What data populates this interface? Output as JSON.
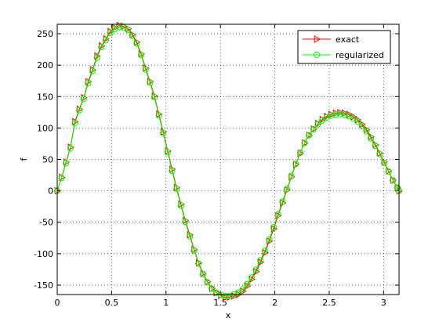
{
  "chart_data": {
    "type": "line",
    "title": "",
    "xlabel": "x",
    "ylabel": "f",
    "xlim": [
      0,
      3.1416
    ],
    "ylim": [
      -165,
      265
    ],
    "xticks": [
      0,
      0.5,
      1,
      1.5,
      2,
      2.5,
      3
    ],
    "xtick_labels": [
      "0",
      "0.5",
      "1",
      "1.5",
      "2",
      "2.5",
      "3"
    ],
    "yticks": [
      -150,
      -100,
      -50,
      0,
      50,
      100,
      150,
      200,
      250
    ],
    "ytick_labels": [
      "-150",
      "-100",
      "-50",
      "0",
      "50",
      "100",
      "150",
      "200",
      "250"
    ],
    "grid": true,
    "grid_style": "dotted",
    "legend_position": "top-right",
    "series": [
      {
        "name": "exact",
        "color": "#ff0000",
        "marker": "triangle-right",
        "x": [
          0.0,
          0.0406,
          0.0812,
          0.1218,
          0.1624,
          0.203,
          0.2436,
          0.2842,
          0.3248,
          0.3654,
          0.406,
          0.4466,
          0.4872,
          0.5278,
          0.5684,
          0.609,
          0.6496,
          0.6902,
          0.7308,
          0.7714,
          0.812,
          0.8526,
          0.8932,
          0.9338,
          0.9744,
          1.015,
          1.0556,
          1.0962,
          1.1368,
          1.1774,
          1.218,
          1.2586,
          1.2992,
          1.3398,
          1.3804,
          1.421,
          1.4616,
          1.5022,
          1.5428,
          1.5834,
          1.624,
          1.6646,
          1.7052,
          1.7458,
          1.7864,
          1.827,
          1.8676,
          1.9082,
          1.9488,
          1.9894,
          2.03,
          2.0706,
          2.1112,
          2.1518,
          2.1924,
          2.233,
          2.2736,
          2.3142,
          2.3548,
          2.3954,
          2.436,
          2.4766,
          2.5172,
          2.5578,
          2.5984,
          2.639,
          2.6796,
          2.7202,
          2.7608,
          2.8014,
          2.842,
          2.8826,
          2.9232,
          2.9638,
          3.0044,
          3.045,
          3.0856,
          3.1262,
          3.1416
        ],
        "y": [
          0.0,
          21.5,
          45.8,
          69.4,
          110.0,
          129.8,
          148.1,
          173.7,
          192.7,
          214.5,
          230.5,
          241.8,
          253.5,
          259.4,
          263.0,
          261.8,
          258.0,
          248.6,
          236.7,
          217.9,
          195.3,
          174.1,
          151.1,
          122.2,
          94.0,
          63.4,
          34.4,
          5.3,
          -21.3,
          -47.0,
          -70.0,
          -93.3,
          -114.6,
          -131.3,
          -144.6,
          -155.2,
          -162.0,
          -166.3,
          -169.8,
          -169.1,
          -167.3,
          -164.8,
          -159.9,
          -151.4,
          -140.7,
          -128.5,
          -113.7,
          -98.4,
          -80.1,
          -60.6,
          -39.6,
          -19.3,
          1.2,
          22.1,
          41.8,
          59.8,
          75.9,
          88.4,
          98.3,
          106.8,
          113.4,
          118.4,
          121.4,
          123.4,
          124.3,
          123.5,
          121.4,
          118.0,
          112.9,
          106.0,
          97.3,
          86.1,
          73.6,
          60.2,
          46.1,
          31.8,
          17.1,
          5.6,
          0.0
        ]
      },
      {
        "name": "regularized",
        "color": "#00ff00",
        "marker": "circle",
        "x": [
          0.0,
          0.0406,
          0.0812,
          0.1218,
          0.1624,
          0.203,
          0.2436,
          0.2842,
          0.3248,
          0.3654,
          0.406,
          0.4466,
          0.4872,
          0.5278,
          0.5684,
          0.609,
          0.6496,
          0.6902,
          0.7308,
          0.7714,
          0.812,
          0.8526,
          0.8932,
          0.9338,
          0.9744,
          1.015,
          1.0556,
          1.0962,
          1.1368,
          1.1774,
          1.218,
          1.2586,
          1.2992,
          1.3398,
          1.3804,
          1.421,
          1.4616,
          1.5022,
          1.5428,
          1.5834,
          1.624,
          1.6646,
          1.7052,
          1.7458,
          1.7864,
          1.827,
          1.8676,
          1.9082,
          1.9488,
          1.9894,
          2.03,
          2.0706,
          2.1112,
          2.1518,
          2.1924,
          2.233,
          2.2736,
          2.3142,
          2.3548,
          2.3954,
          2.436,
          2.4766,
          2.5172,
          2.5578,
          2.5984,
          2.639,
          2.6796,
          2.7202,
          2.7608,
          2.8014,
          2.842,
          2.8826,
          2.9232,
          2.9638,
          3.0044,
          3.045,
          3.0856,
          3.1262,
          3.1416
        ],
        "y": [
          0.0,
          20.5,
          44.0,
          67.9,
          107.6,
          128.4,
          146.4,
          171.2,
          190.6,
          211.8,
          228.6,
          240.1,
          251.3,
          257.3,
          260.5,
          260.0,
          256.3,
          246.8,
          234.5,
          216.0,
          193.3,
          172.1,
          148.9,
          120.0,
          91.6,
          61.3,
          31.8,
          3.0,
          -23.6,
          -49.3,
          -72.5,
          -95.0,
          -116.0,
          -132.6,
          -145.6,
          -155.6,
          -162.0,
          -165.4,
          -167.7,
          -167.0,
          -164.6,
          -161.8,
          -156.7,
          -148.4,
          -137.9,
          -125.6,
          -110.7,
          -95.6,
          -77.3,
          -57.9,
          -37.2,
          -17.1,
          2.9,
          23.6,
          42.8,
          60.5,
          76.2,
          88.3,
          98.0,
          105.9,
          112.2,
          116.8,
          119.8,
          121.3,
          121.8,
          120.9,
          118.7,
          115.3,
          110.2,
          103.3,
          94.8,
          83.9,
          71.6,
          58.4,
          44.6,
          30.6,
          16.5,
          5.2,
          0.0
        ]
      }
    ]
  }
}
